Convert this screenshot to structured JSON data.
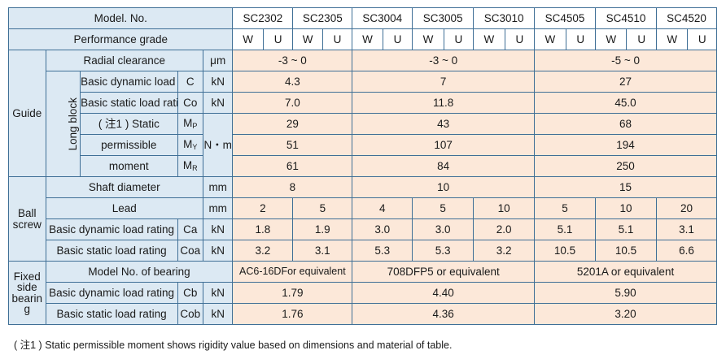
{
  "header": {
    "model_label": "Model. No.",
    "models": [
      "SC2302",
      "SC2305",
      "SC3004",
      "SC3005",
      "SC3010",
      "SC4505",
      "SC4510",
      "SC4520"
    ],
    "grade_label": "Performance grade",
    "grades": [
      "W",
      "U",
      "W",
      "U",
      "W",
      "U",
      "W",
      "U",
      "W",
      "U",
      "W",
      "U",
      "W",
      "U",
      "W",
      "U"
    ]
  },
  "guide": {
    "label": "Guide",
    "radial": {
      "label": "Radial clearance",
      "unit": "μm",
      "values": [
        "-3 ~ 0",
        "-3 ~ 0",
        "-5 ~ 0"
      ]
    },
    "long_block": {
      "label": "Long block",
      "dynamic": {
        "label": "Basic dynamic load rating",
        "symbol": "C",
        "unit": "kN",
        "values": [
          "4.3",
          "7",
          "27"
        ]
      },
      "static": {
        "label": "Basic static load rating",
        "symbol": "Co",
        "unit": "kN",
        "values": [
          "7.0",
          "11.8",
          "45.0"
        ]
      },
      "moment": {
        "label_line1": "( 注1 ) Static",
        "label_line2": "permissible",
        "label_line3": "moment",
        "unit": "N・m",
        "rows": [
          {
            "symbol": "M",
            "sub": "P",
            "values": [
              "29",
              "43",
              "68"
            ]
          },
          {
            "symbol": "M",
            "sub": "Y",
            "values": [
              "51",
              "107",
              "194"
            ]
          },
          {
            "symbol": "M",
            "sub": "R",
            "values": [
              "61",
              "84",
              "250"
            ]
          }
        ]
      }
    }
  },
  "ball_screw": {
    "label_line1": "Ball",
    "label_line2": "screw",
    "shaft": {
      "label": "Shaft diameter",
      "unit": "mm",
      "values": [
        "8",
        "10",
        "15"
      ]
    },
    "lead": {
      "label": "Lead",
      "unit": "mm",
      "values": [
        "2",
        "5",
        "4",
        "5",
        "10",
        "5",
        "10",
        "20"
      ]
    },
    "dynamic": {
      "label": "Basic dynamic load rating",
      "symbol": "Ca",
      "unit": "kN",
      "values": [
        "1.8",
        "1.9",
        "3.0",
        "3.0",
        "2.0",
        "5.1",
        "5.1",
        "3.1"
      ]
    },
    "static": {
      "label": "Basic static load rating",
      "symbol": "Coa",
      "unit": "kN",
      "values": [
        "3.2",
        "3.1",
        "5.3",
        "5.3",
        "3.2",
        "10.5",
        "10.5",
        "6.6"
      ]
    }
  },
  "fixed_side": {
    "label_line1": "Fixed",
    "label_line2": "side",
    "label_line3": "bearin",
    "label_line4": "g",
    "model": {
      "label": "Model No. of bearing",
      "values": [
        "AC6-16DFor equivalent",
        "708DFP5 or equivalent",
        "5201A or equivalent"
      ]
    },
    "dynamic": {
      "label": "Basic dynamic load rating",
      "symbol": "Cb",
      "unit": "kN",
      "values": [
        "1.79",
        "4.40",
        "5.90"
      ]
    },
    "static": {
      "label": "Basic static load rating",
      "symbol": "Cob",
      "unit": "kN",
      "values": [
        "1.76",
        "4.36",
        "3.20"
      ]
    }
  },
  "footnote": "( 注1 ) Static permissible moment shows rigidity value based on dimensions and material of table.",
  "colors": {
    "label_bg": "#dce9f3",
    "value_bg": "#fce8d9",
    "border": "#3f6f96"
  }
}
